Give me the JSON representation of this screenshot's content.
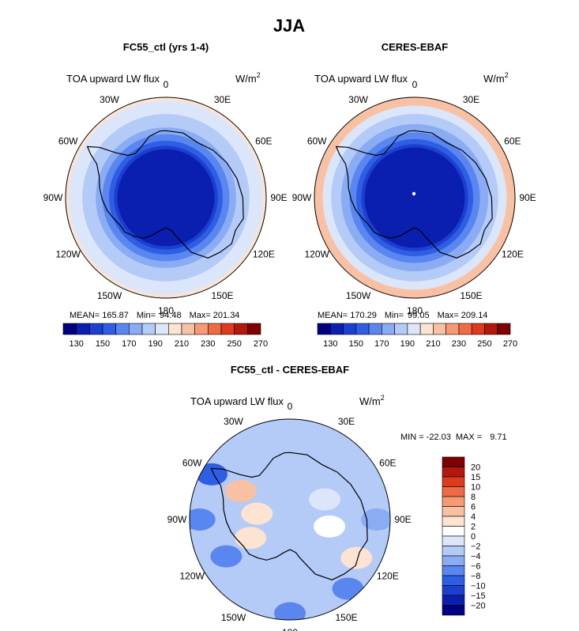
{
  "suptitle": "JJA",
  "chart_data": [
    {
      "type": "heatmap",
      "projection": "south-polar-stereographic",
      "title": "FC55_ctl (yrs 1-4)",
      "variable": "TOA upward LW flux",
      "units_base": "W/m",
      "units_exp": "2",
      "stats": {
        "mean_label": "MEAN=",
        "mean": "165.87",
        "min_label": "Min=",
        "min": "94.48",
        "max_label": "Max=",
        "max": "201.34"
      },
      "lon_labels": [
        "0",
        "30E",
        "60E",
        "90E",
        "120E",
        "150E",
        "180",
        "150W",
        "120W",
        "90W",
        "60W",
        "30W"
      ],
      "rings": [
        {
          "radius_deg": 30,
          "value": 200
        },
        {
          "radius_deg": 29,
          "value": 190
        },
        {
          "radius_deg": 25,
          "value": 180
        },
        {
          "radius_deg": 21,
          "value": 170
        },
        {
          "radius_deg": 19,
          "value": 160
        },
        {
          "radius_deg": 17,
          "value": 150
        },
        {
          "radius_deg": 15.5,
          "value": 140
        },
        {
          "radius_deg": 14.5,
          "value": 130
        }
      ],
      "colorbar": {
        "orientation": "horizontal",
        "tick_labels": [
          "130",
          "150",
          "170",
          "190",
          "210",
          "230",
          "250",
          "270"
        ],
        "colors": [
          "#000080",
          "#0a1fb0",
          "#1c3fd0",
          "#2e5ee3",
          "#5a86f0",
          "#8aacf5",
          "#b4cbf7",
          "#dbe6fb",
          "#fce3d2",
          "#f9c1a3",
          "#f59a74",
          "#ee6b46",
          "#dd3b1c",
          "#b3180c",
          "#7f0000"
        ]
      }
    },
    {
      "type": "heatmap",
      "projection": "south-polar-stereographic",
      "title": "CERES-EBAF",
      "variable": "TOA upward LW flux",
      "units_base": "W/m",
      "units_exp": "2",
      "stats": {
        "mean_label": "MEAN=",
        "mean": "170.29",
        "min_label": "Min=",
        "min": "99.05",
        "max_label": "Max=",
        "max": "209.14"
      },
      "lon_labels": [
        "0",
        "30E",
        "60E",
        "90E",
        "120E",
        "150E",
        "180",
        "150W",
        "120W",
        "90W",
        "60W",
        "30W"
      ],
      "rings": [
        {
          "radius_deg": 30,
          "value": 210
        },
        {
          "radius_deg": 27.5,
          "value": 190
        },
        {
          "radius_deg": 25,
          "value": 180
        },
        {
          "radius_deg": 22,
          "value": 170
        },
        {
          "radius_deg": 19.5,
          "value": 160
        },
        {
          "radius_deg": 17.5,
          "value": 150
        },
        {
          "radius_deg": 16,
          "value": 140
        },
        {
          "radius_deg": 15,
          "value": 130
        }
      ],
      "colorbar": {
        "orientation": "horizontal",
        "tick_labels": [
          "130",
          "150",
          "170",
          "190",
          "210",
          "230",
          "250",
          "270"
        ],
        "colors": [
          "#000080",
          "#0a1fb0",
          "#1c3fd0",
          "#2e5ee3",
          "#5a86f0",
          "#8aacf5",
          "#b4cbf7",
          "#dbe6fb",
          "#fce3d2",
          "#f9c1a3",
          "#f59a74",
          "#ee6b46",
          "#dd3b1c",
          "#b3180c",
          "#7f0000"
        ]
      }
    },
    {
      "type": "heatmap",
      "projection": "south-polar-stereographic",
      "title": "FC55_ctl - CERES-EBAF",
      "variable": "TOA upward LW flux",
      "units_base": "W/m",
      "units_exp": "2",
      "stats": {
        "min_label": "MIN =",
        "min": "-22.03",
        "max_label": "MAX =",
        "max": "9.71"
      },
      "lon_labels": [
        "0",
        "30E",
        "60E",
        "90E",
        "120E",
        "150E",
        "180",
        "150W",
        "120W",
        "90W",
        "60W",
        "30W"
      ],
      "background_value": -4,
      "anomalies": [
        {
          "lon": 270,
          "colat": 27,
          "value": -8
        },
        {
          "lon": 300,
          "colat": 27,
          "value": -10
        },
        {
          "lon": 180,
          "colat": 28,
          "value": -8
        },
        {
          "lon": 140,
          "colat": 27,
          "value": -8
        },
        {
          "lon": 90,
          "colat": 26,
          "value": -6
        },
        {
          "lon": 240,
          "colat": 22,
          "value": -8
        },
        {
          "lon": 300,
          "colat": 17,
          "value": 4
        },
        {
          "lon": 280,
          "colat": 10,
          "value": 2
        },
        {
          "lon": 245,
          "colat": 13,
          "value": 2
        },
        {
          "lon": 60,
          "colat": 12,
          "value": -2
        },
        {
          "lon": 100,
          "colat": 12,
          "value": 0
        },
        {
          "lon": 120,
          "colat": 23,
          "value": 2
        }
      ],
      "colorbar": {
        "orientation": "vertical",
        "tick_labels": [
          "20",
          "15",
          "10",
          "8",
          "6",
          "4",
          "2",
          "0",
          "−2",
          "−4",
          "−6",
          "−8",
          "−10",
          "−15",
          "−20"
        ],
        "colors": [
          "#7f0000",
          "#b3180c",
          "#dd3b1c",
          "#ee6b46",
          "#f59a74",
          "#f9c1a3",
          "#fce3d2",
          "#ffffff",
          "#dbe6fb",
          "#b4cbf7",
          "#8aacf5",
          "#5a86f0",
          "#2e5ee3",
          "#1c3fd0",
          "#0a1fb0",
          "#000080"
        ]
      }
    }
  ]
}
